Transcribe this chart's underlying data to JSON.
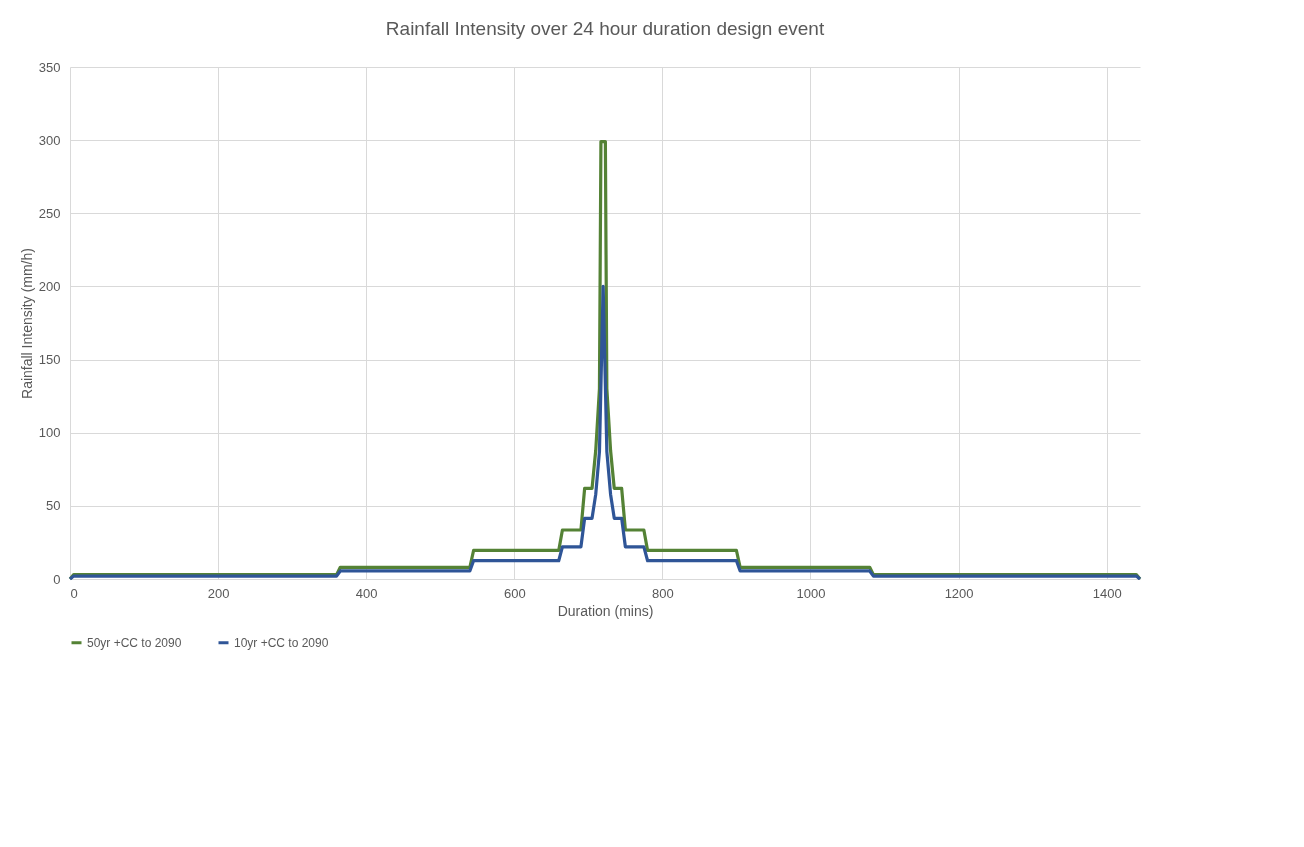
{
  "chart_data": {
    "type": "line",
    "title": "Rainfall Intensity over 24 hour duration design event",
    "xlabel": "Duration (mins)",
    "ylabel": "Rainfall Intensity (mm/h)",
    "xlim": [
      0,
      1445
    ],
    "xticks": [
      0,
      200,
      400,
      600,
      800,
      1000,
      1200,
      1400
    ],
    "ylim": [
      0,
      350
    ],
    "yticks": [
      0,
      50,
      100,
      150,
      200,
      250,
      300,
      350
    ],
    "grid": true,
    "legend": "bottom",
    "marker": "none",
    "line_style": "solid",
    "series": [
      {
        "name": "50yr +CC to 2090",
        "color": "#548235",
        "x": [
          0,
          5,
          360,
          365,
          540,
          545,
          660,
          665,
          690,
          695,
          705,
          710,
          715,
          717,
          723,
          725,
          730,
          735,
          745,
          750,
          775,
          780,
          900,
          905,
          1080,
          1085,
          1440,
          1445
        ],
        "values": [
          0,
          3,
          3,
          8,
          8,
          19.5,
          19.5,
          33.5,
          33.5,
          62,
          62,
          88,
          130,
          299,
          299,
          130,
          88,
          62,
          62,
          33.5,
          33.5,
          19.5,
          19.5,
          8,
          8,
          3,
          3,
          0
        ]
      },
      {
        "name": "10yr +CC to 2090",
        "color": "#2f5597",
        "x": [
          0,
          5,
          360,
          365,
          540,
          545,
          660,
          665,
          690,
          695,
          705,
          710,
          715,
          720,
          725,
          730,
          735,
          745,
          750,
          775,
          780,
          900,
          905,
          1080,
          1085,
          1440,
          1445
        ],
        "values": [
          0,
          2,
          2,
          5.5,
          5.5,
          12.5,
          12.5,
          22,
          22,
          41.5,
          41.5,
          58,
          87,
          200,
          87,
          58,
          41.5,
          41.5,
          22,
          22,
          12.5,
          12.5,
          5.5,
          5.5,
          2,
          2,
          0
        ]
      }
    ]
  }
}
